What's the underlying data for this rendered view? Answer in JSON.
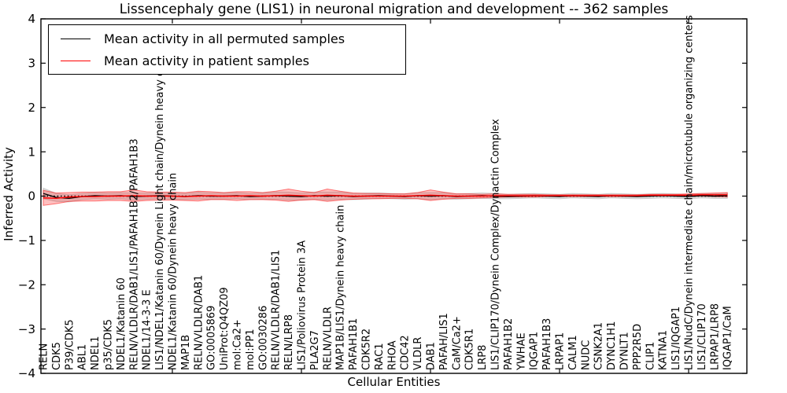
{
  "chart_data": {
    "type": "line",
    "title": "Lissencephaly gene (LIS1) in neuronal migration and development -- 362 samples",
    "xlabel": "Cellular Entities",
    "ylabel": "Inferred Activity",
    "ylim": [
      -4,
      4
    ],
    "yticks": [
      4,
      3,
      2,
      1,
      0,
      -1,
      -2,
      -3,
      -4
    ],
    "x_major_tick_indices": [
      10,
      20,
      30,
      40,
      50
    ],
    "grid": false,
    "legend_position": "upper left",
    "zero_line": {
      "style": "dotted",
      "color": "#000000"
    },
    "categories": [
      "RELN",
      "CDK5",
      "P39/CDK5",
      "ABL1",
      "NDEL1",
      "p35/CDK5",
      "NDEL1/Katanin 60",
      "RELN/VLDLR/DAB1/LIS1/PAFAH1B2/PAFAH1B3",
      "NDEL1/14-3-3 E",
      "LIS1/NDEL1/Katanin 60/Dynein Light chain/Dynein heavy chain",
      "NDEL1/Katanin 60/Dynein heavy chain",
      "MAP1B",
      "RELN/VLDLR/DAB1",
      "GO:0005869",
      "UniProt:Q4QZ09",
      "mol:Ca2+",
      "mol:PP1",
      "GO:0030286",
      "RELN/VLDLR/DAB1/LIS1",
      "RELN/LRP8",
      "LIS1/Poliovirus Protein 3A",
      "PLA2G7",
      "RELN/VLDLR",
      "MAP1B/LIS1/Dynein heavy chain",
      "PAFAH1B1",
      "CDK5R2",
      "RAC1",
      "RHOA",
      "CDC42",
      "VLDLR",
      "DAB1",
      "PAFAH/LIS1",
      "CaM/Ca2+",
      "CDK5R1",
      "LRP8",
      "LIS1/CLIP170/Dynein Complex/Dynactin Complex",
      "PAFAH1B2",
      "YWHAE",
      "IQGAP1",
      "PAFAH1B3",
      "LRPAP1",
      "CALM1",
      "NUDC",
      "CSNK2A1",
      "DYNC1H1",
      "DYNLT1",
      "PPP2R5D",
      "CLIP1",
      "KATNA1",
      "LIS1/IQGAP1",
      "LIS1/NudC/Dynein intermediate chain/microtubule organizing centers",
      "LIS1/CLIP170",
      "LRPAP1/LRP8",
      "IQGAP1/CaM"
    ],
    "series": [
      {
        "name": "Mean activity in all permuted samples",
        "color": "#000000",
        "band_color": "rgba(128,128,128,0.22)",
        "band_edge_color": "rgba(128,128,128,0.35)",
        "values": [
          0.06,
          -0.03,
          -0.05,
          -0.01,
          0.01,
          0,
          0.01,
          -0.01,
          0,
          0.01,
          0,
          -0.01,
          0.01,
          0,
          0,
          0.01,
          -0.01,
          0,
          0.01,
          0,
          -0.01,
          0.01,
          0,
          0.01,
          -0.01,
          0,
          0.01,
          0,
          -0.01,
          0.01,
          0,
          0.01,
          -0.01,
          0,
          0.01,
          0,
          -0.01,
          0,
          0.01,
          0,
          -0.01,
          0.01,
          0,
          -0.01,
          0.01,
          0,
          -0.01,
          0,
          0.01,
          0,
          -0.01,
          0.01,
          0,
          0.01
        ],
        "band_halfwidth": [
          0.12,
          0.09,
          0.08,
          0.07,
          0.07,
          0.07,
          0.07,
          0.08,
          0.07,
          0.07,
          0.07,
          0.07,
          0.08,
          0.07,
          0.07,
          0.07,
          0.07,
          0.07,
          0.08,
          0.09,
          0.08,
          0.08,
          0.09,
          0.08,
          0.07,
          0.07,
          0.06,
          0.06,
          0.06,
          0.07,
          0.08,
          0.07,
          0.06,
          0.06,
          0.06,
          0.06,
          0.05,
          0.05,
          0.05,
          0.05,
          0.05,
          0.05,
          0.05,
          0.05,
          0.05,
          0.05,
          0.05,
          0.05,
          0.05,
          0.05,
          0.05,
          0.05,
          0.05,
          0.06
        ]
      },
      {
        "name": "Mean activity in patient samples",
        "color": "#ff0000",
        "band_color": "rgba(255,0,0,0.25)",
        "band_edge_color": "rgba(255,0,0,0.5)",
        "values": [
          -0.04,
          -0.05,
          -0.02,
          -0.01,
          -0.01,
          0,
          0,
          0.01,
          0,
          0,
          0,
          -0.01,
          0,
          0.01,
          0,
          0,
          0.01,
          0,
          0.01,
          0.02,
          0.01,
          0,
          0.02,
          0.01,
          0,
          0,
          0,
          0,
          0,
          0.01,
          0.02,
          0.01,
          0,
          0,
          0,
          0.01,
          0.01,
          0.01,
          0.01,
          0.01,
          0.01,
          0.01,
          0.01,
          0.01,
          0.01,
          0.01,
          0.01,
          0.02,
          0.02,
          0.02,
          0.02,
          0.03,
          0.03,
          0.03
        ],
        "band_halfwidth": [
          0.17,
          0.12,
          0.1,
          0.1,
          0.1,
          0.1,
          0.1,
          0.13,
          0.1,
          0.09,
          0.09,
          0.09,
          0.11,
          0.09,
          0.08,
          0.1,
          0.09,
          0.08,
          0.1,
          0.14,
          0.1,
          0.08,
          0.14,
          0.1,
          0.07,
          0.06,
          0.06,
          0.05,
          0.05,
          0.07,
          0.12,
          0.08,
          0.05,
          0.05,
          0.04,
          0.04,
          0.03,
          0.03,
          0.03,
          0.02,
          0.02,
          0.02,
          0.02,
          0.02,
          0.02,
          0.02,
          0.02,
          0.02,
          0.02,
          0.02,
          0.03,
          0.03,
          0.04,
          0.05
        ]
      }
    ]
  },
  "legend": {
    "items": [
      {
        "label": "Mean activity in all permuted samples",
        "color": "#000000"
      },
      {
        "label": "Mean activity in patient samples",
        "color": "#ff0000"
      }
    ]
  }
}
